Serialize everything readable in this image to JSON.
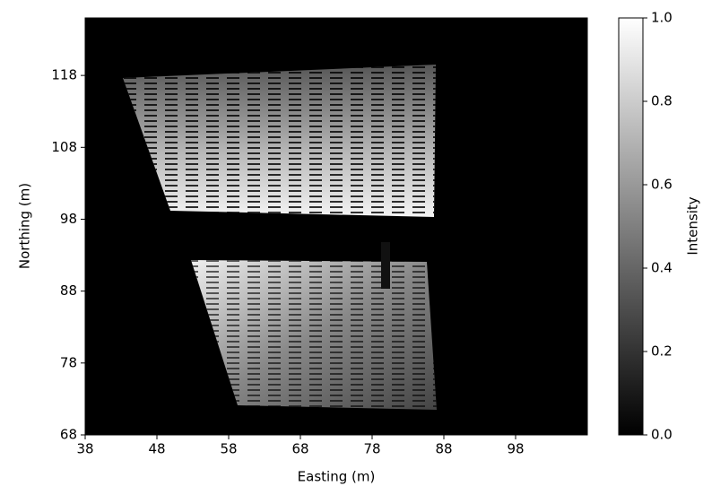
{
  "chart_data": {
    "type": "heatmap",
    "xlabel": "Easting (m)",
    "ylabel": "Northing (m)",
    "colorbar_label": "Intensity",
    "xlim": [
      38,
      108
    ],
    "ylim": [
      68,
      126
    ],
    "xticks": [
      38,
      48,
      58,
      68,
      78,
      88,
      98
    ],
    "yticks": [
      68,
      78,
      88,
      98,
      108,
      118
    ],
    "clim": [
      0,
      1
    ],
    "cticks": [
      {
        "value": 0,
        "label": "0.0"
      },
      0.2,
      0.4,
      0.6,
      0.8,
      {
        "value": 1,
        "label": "1.0"
      }
    ],
    "colormap": [
      "#000000",
      "#ffffff"
    ]
  }
}
